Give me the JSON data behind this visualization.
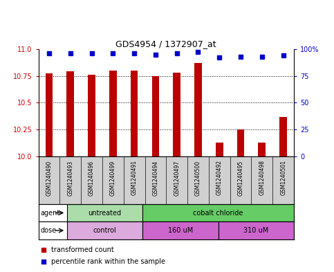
{
  "title": "GDS4954 / 1372907_at",
  "samples": [
    "GSM1240490",
    "GSM1240493",
    "GSM1240496",
    "GSM1240499",
    "GSM1240491",
    "GSM1240494",
    "GSM1240497",
    "GSM1240500",
    "GSM1240492",
    "GSM1240495",
    "GSM1240498",
    "GSM1240501"
  ],
  "transformed_counts": [
    10.77,
    10.79,
    10.76,
    10.8,
    10.8,
    10.75,
    10.78,
    10.87,
    10.13,
    10.25,
    10.13,
    10.37
  ],
  "percentile_ranks": [
    96,
    96,
    96,
    96,
    96,
    95,
    96,
    97,
    92,
    93,
    93,
    94
  ],
  "ylim_left": [
    10.0,
    11.0
  ],
  "ylim_right": [
    0,
    100
  ],
  "yticks_left": [
    10.0,
    10.25,
    10.5,
    10.75,
    11.0
  ],
  "yticks_right": [
    0,
    25,
    50,
    75,
    100
  ],
  "bar_color": "#bb0000",
  "dot_color": "#0000cc",
  "agent_groups": [
    {
      "label": "untreated",
      "start": 0,
      "end": 4,
      "color": "#aaddaa"
    },
    {
      "label": "cobalt chloride",
      "start": 4,
      "end": 12,
      "color": "#66cc66"
    }
  ],
  "dose_groups": [
    {
      "label": "control",
      "start": 0,
      "end": 4,
      "color": "#ddaadd"
    },
    {
      "label": "160 uM",
      "start": 4,
      "end": 8,
      "color": "#cc66cc"
    },
    {
      "label": "310 uM",
      "start": 8,
      "end": 12,
      "color": "#cc66cc"
    }
  ],
  "agent_label": "agent",
  "dose_label": "dose",
  "legend_bar_label": "transformed count",
  "legend_dot_label": "percentile rank within the sample",
  "sample_box_color": "#d0d0d0",
  "left_tick_color": "#cc0000",
  "right_tick_color": "#0000cc",
  "grid_yticks": [
    10.25,
    10.5,
    10.75
  ]
}
